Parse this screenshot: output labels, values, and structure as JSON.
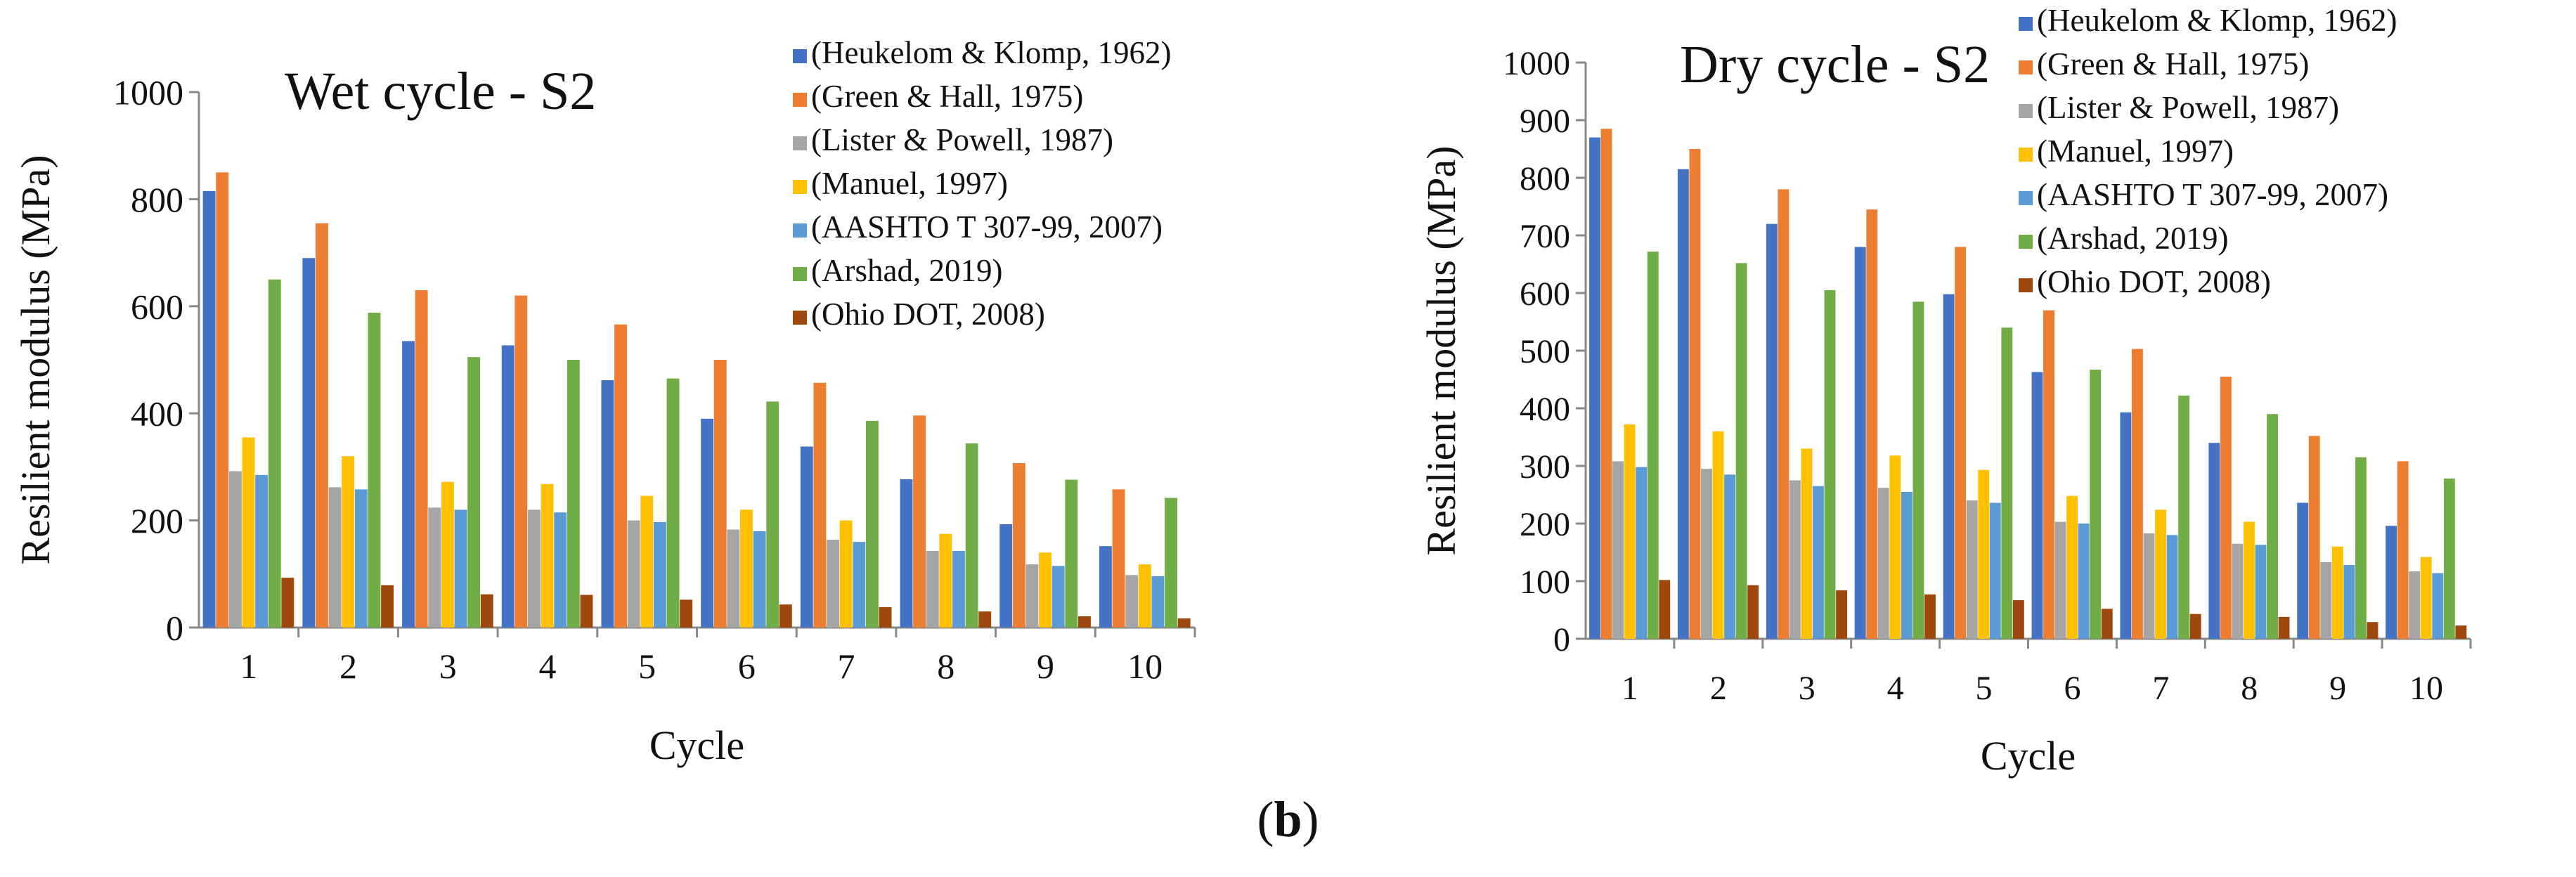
{
  "caption": {
    "open": "(",
    "letter": "b",
    "close": ")"
  },
  "chart_data": [
    {
      "type": "bar",
      "title": "Wet cycle - S2",
      "xlabel": "Cycle",
      "ylabel": "Resilient modulus (MPa)",
      "ylim": [
        0,
        1000
      ],
      "yticks": [
        0,
        200,
        400,
        600,
        800,
        1000
      ],
      "grid": false,
      "legend_position": "top-right",
      "categories": [
        "1",
        "2",
        "3",
        "4",
        "5",
        "6",
        "7",
        "8",
        "9",
        "10"
      ],
      "series": [
        {
          "name": "(Heukelom & Klomp, 1962)",
          "color": "#4472C4",
          "values": [
            815,
            690,
            535,
            527,
            462,
            390,
            338,
            277,
            193,
            152
          ]
        },
        {
          "name": "(Green & Hall, 1975)",
          "color": "#ED7D31",
          "values": [
            850,
            755,
            630,
            620,
            566,
            500,
            457,
            396,
            307,
            258
          ]
        },
        {
          "name": "(Lister & Powell, 1987)",
          "color": "#A5A5A5",
          "values": [
            292,
            262,
            224,
            220,
            200,
            183,
            164,
            143,
            118,
            98
          ]
        },
        {
          "name": "(Manuel, 1997)",
          "color": "#FFC000",
          "values": [
            355,
            320,
            272,
            268,
            246,
            220,
            200,
            175,
            140,
            118
          ]
        },
        {
          "name": "(AASHTO T 307-99, 2007)",
          "color": "#5B9BD5",
          "values": [
            285,
            258,
            220,
            215,
            197,
            180,
            160,
            143,
            115,
            96
          ]
        },
        {
          "name": "(Arshad, 2019)",
          "color": "#70AD47",
          "values": [
            650,
            588,
            505,
            500,
            465,
            422,
            386,
            344,
            276,
            242
          ]
        },
        {
          "name": "(Ohio DOT, 2008)",
          "color": "#9E480E",
          "values": [
            93,
            79,
            62,
            61,
            52,
            43,
            38,
            30,
            21,
            17
          ]
        }
      ]
    },
    {
      "type": "bar",
      "title": "Dry cycle - S2",
      "xlabel": "Cycle",
      "ylabel": "Resilient modulus (MPa)",
      "ylim": [
        0,
        1000
      ],
      "yticks": [
        0,
        100,
        200,
        300,
        400,
        500,
        600,
        700,
        800,
        900,
        1000
      ],
      "grid": false,
      "legend_position": "top-right",
      "categories": [
        "1",
        "2",
        "3",
        "4",
        "5",
        "6",
        "7",
        "8",
        "9",
        "10"
      ],
      "series": [
        {
          "name": "(Heukelom & Klomp, 1962)",
          "color": "#4472C4",
          "values": [
            870,
            815,
            720,
            680,
            598,
            463,
            393,
            340,
            236,
            196
          ]
        },
        {
          "name": "(Green & Hall, 1975)",
          "color": "#ED7D31",
          "values": [
            885,
            850,
            780,
            745,
            680,
            570,
            503,
            455,
            352,
            308
          ]
        },
        {
          "name": "(Lister & Powell, 1987)",
          "color": "#A5A5A5",
          "values": [
            308,
            295,
            275,
            262,
            240,
            203,
            183,
            165,
            133,
            117
          ]
        },
        {
          "name": "(Manuel, 1997)",
          "color": "#FFC000",
          "values": [
            372,
            360,
            330,
            318,
            293,
            248,
            224,
            203,
            160,
            142
          ]
        },
        {
          "name": "(AASHTO T 307-99, 2007)",
          "color": "#5B9BD5",
          "values": [
            298,
            285,
            265,
            255,
            236,
            200,
            180,
            163,
            128,
            114
          ]
        },
        {
          "name": "(Arshad, 2019)",
          "color": "#70AD47",
          "values": [
            672,
            652,
            605,
            585,
            540,
            467,
            422,
            390,
            315,
            278
          ]
        },
        {
          "name": "(Ohio DOT, 2008)",
          "color": "#9E480E",
          "values": [
            102,
            93,
            84,
            77,
            67,
            52,
            43,
            38,
            29,
            23
          ]
        }
      ]
    }
  ]
}
